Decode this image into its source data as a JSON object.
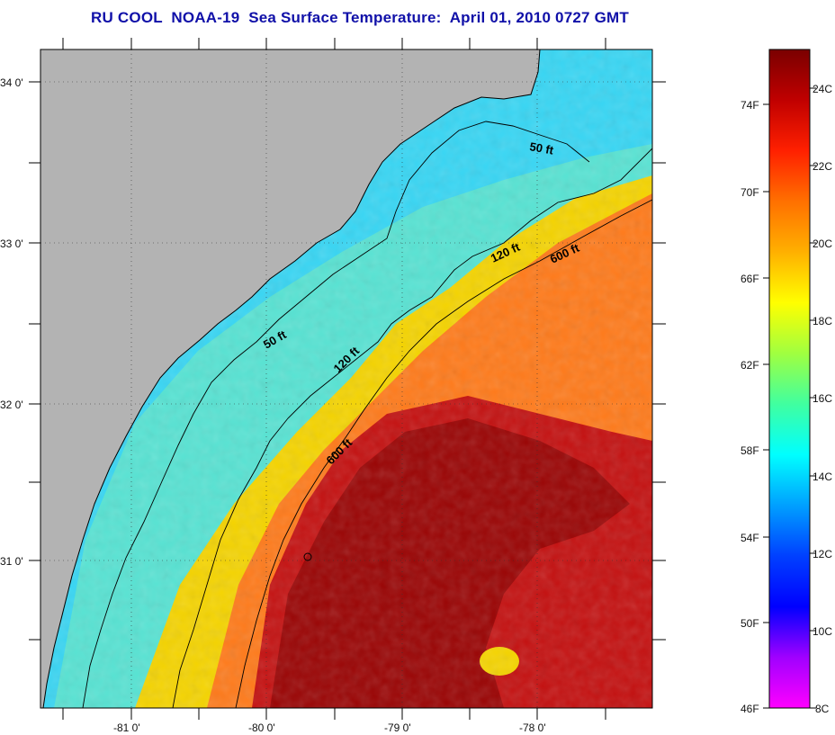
{
  "title": "RU COOL  NOAA-19  Sea Surface Temperature:  April 01, 2010 0727 GMT",
  "map": {
    "longitude_labels": [
      "-81 0'",
      "-80 0'",
      "-79 0'",
      "-78 0'"
    ],
    "latitude_labels": [
      "34 0'",
      "33 0'",
      "32 0'",
      "31 0'"
    ],
    "contour_labels": [
      "50 ft",
      "120 ft",
      "600 ft",
      "50 ft",
      "120 ft",
      "600 ft"
    ],
    "colors": {
      "land": "#b3b3b3",
      "cold_shelf": "#37d6f4",
      "mid_shelf": "#57e3d3",
      "warm_slope": "#f5d400",
      "orange_band": "#ff7a1a",
      "gulf_stream": "#c41010",
      "gulf_stream_core": "#9a0404"
    }
  },
  "colorbar": {
    "fahrenheit_labels": [
      "74F",
      "70F",
      "66F",
      "62F",
      "58F",
      "54F",
      "50F",
      "46F"
    ],
    "celsius_labels": [
      "24C",
      "22C",
      "20C",
      "18C",
      "16C",
      "14C",
      "12C",
      "10C",
      "8C"
    ],
    "range_c": [
      8,
      25
    ],
    "gradient": [
      "#7a0000",
      "#c00000",
      "#ff2000",
      "#ff7000",
      "#ffb000",
      "#ffff00",
      "#a0ff40",
      "#40ffa0",
      "#00ffff",
      "#00a0ff",
      "#0040ff",
      "#0000ff",
      "#a000ff",
      "#ff00ff"
    ]
  }
}
